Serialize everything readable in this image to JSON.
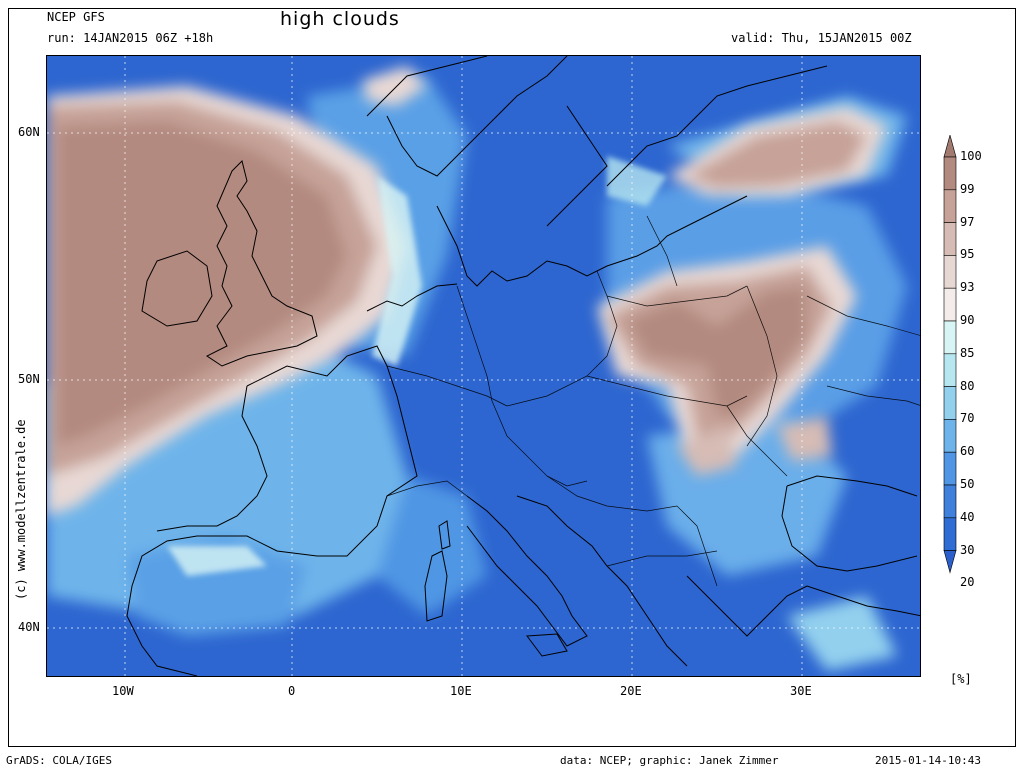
{
  "header": {
    "model": "NCEP GFS",
    "run": "run: 14JAN2015 06Z +18h",
    "title": "high clouds",
    "valid": "valid: Thu, 15JAN2015 00Z"
  },
  "axes": {
    "lat_labels": [
      "60N",
      "50N",
      "40N"
    ],
    "lon_labels": [
      "10W",
      "0",
      "10E",
      "20E",
      "30E"
    ]
  },
  "credit": "(c) www.modellzentrale.de",
  "legend": {
    "unit": "[%]",
    "levels": [
      {
        "label": "100",
        "color": "#a27a70"
      },
      {
        "label": "99",
        "color": "#b38a80"
      },
      {
        "label": "97",
        "color": "#c6a298"
      },
      {
        "label": "95",
        "color": "#d6bcb5"
      },
      {
        "label": "93",
        "color": "#e8d8d4"
      },
      {
        "label": "90",
        "color": "#f4eceb"
      },
      {
        "label": "85",
        "color": "#d8f4f4"
      },
      {
        "label": "80",
        "color": "#b6e6f0"
      },
      {
        "label": "70",
        "color": "#93d0ee"
      },
      {
        "label": "60",
        "color": "#6eb4ea"
      },
      {
        "label": "50",
        "color": "#5096e4"
      },
      {
        "label": "40",
        "color": "#3e80dc"
      },
      {
        "label": "30",
        "color": "#2f6cd4"
      },
      {
        "label": "20",
        "color": "#2a5fcc"
      }
    ]
  },
  "footer": {
    "left": "GrADS: COLA/IGES",
    "center": "data: NCEP; graphic: Janek Zimmer",
    "right": "2015-01-14-10:43"
  }
}
